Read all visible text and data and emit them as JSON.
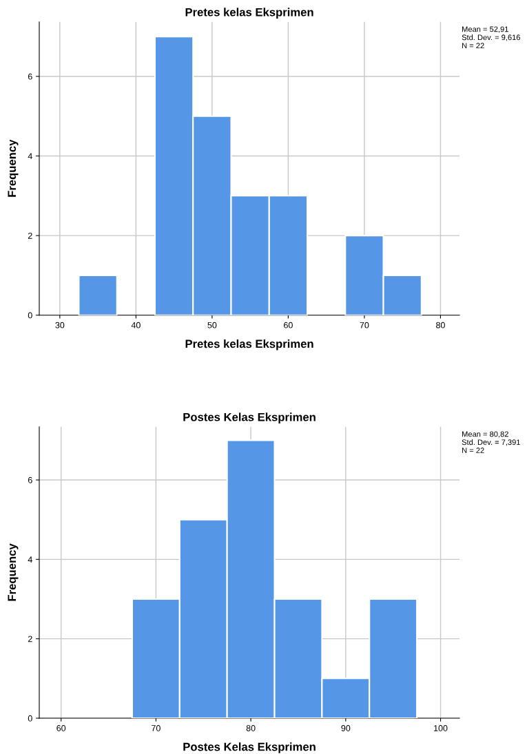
{
  "chart_data": [
    {
      "type": "histogram",
      "title": "Pretes kelas Eksprimen",
      "xlabel": "Pretes kelas Eksprimen",
      "ylabel": "Frequency",
      "bins": [
        32.5,
        37.5,
        42.5,
        47.5,
        52.5,
        57.5,
        62.5,
        67.5,
        72.5,
        77.5
      ],
      "values": [
        1,
        0,
        7,
        5,
        3,
        3,
        0,
        2,
        1
      ],
      "color": "#5596e6",
      "xlim": [
        27.3,
        82.5
      ],
      "xticks": [
        30,
        40,
        50,
        60,
        70,
        80
      ],
      "ylim": [
        0,
        7.37
      ],
      "yticks": [
        0,
        2,
        4,
        6
      ],
      "grid": true,
      "annotations": [
        "Mean = 52,91",
        "Std. Dev. = 9,616",
        "N = 22"
      ]
    },
    {
      "type": "histogram",
      "title": "Postes Kelas Eksprimen",
      "xlabel": "Postes Kelas Eksprimen",
      "ylabel": "Frequency",
      "bins": [
        67.5,
        72.5,
        77.5,
        82.5,
        87.5,
        92.5,
        97.5
      ],
      "values": [
        3,
        5,
        7,
        3,
        1,
        3
      ],
      "color": "#5596e6",
      "xlim": [
        57.7,
        102
      ],
      "xticks": [
        60,
        70,
        80,
        90,
        100
      ],
      "ylim": [
        0,
        7.34
      ],
      "yticks": [
        0,
        2,
        4,
        6
      ],
      "grid": true,
      "annotations": [
        "Mean = 80,82",
        "Std. Dev. = 7,391",
        "N = 22"
      ]
    }
  ]
}
